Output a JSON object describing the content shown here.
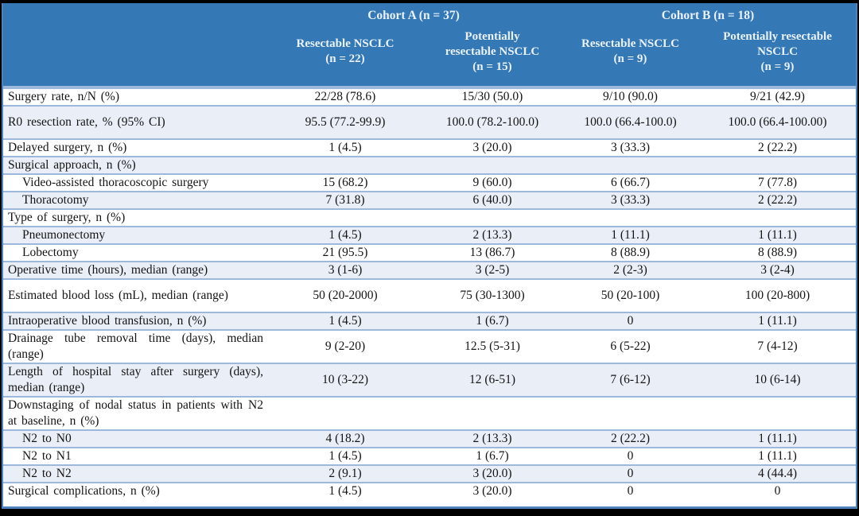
{
  "table": {
    "colors": {
      "header_bg": "#3478b6",
      "stripe_bg": "#e9eef7",
      "separator_line": "#9cb8da",
      "outer_border": "#4f81bd",
      "frame": "#000000",
      "header_text": "#eaf2fa"
    },
    "header": {
      "cohorts": [
        {
          "label": "Cohort A (n = 37)"
        },
        {
          "label": "Cohort B (n = 18)"
        }
      ],
      "columns": [
        {
          "lines": [
            "Resectable NSCLC",
            "(n = 22)"
          ]
        },
        {
          "lines": [
            "Potentially",
            "resectable NSCLC",
            "(n = 15)"
          ]
        },
        {
          "lines": [
            "Resectable NSCLC",
            "(n = 9)"
          ]
        },
        {
          "lines": [
            "Potentially resectable",
            "NSCLC",
            "(n = 9)"
          ]
        }
      ]
    },
    "rows": [
      {
        "label": "Surgery rate, n/N (%)",
        "values": [
          "22/28 (78.6)",
          "15/30 (50.0)",
          "9/10 (90.0)",
          "9/21 (42.9)"
        ]
      },
      {
        "label": "R0 resection rate, % (95% CI)",
        "values": [
          "95.5 (77.2-99.9)",
          "100.0 (78.2-100.0)",
          "100.0 (66.4-100.0)",
          "100.0 (66.4-100.00)"
        ]
      },
      {
        "label": "Delayed surgery, n (%)",
        "values": [
          "1 (4.5)",
          "3 (20.0)",
          "3 (33.3)",
          "2 (22.2)"
        ]
      },
      {
        "label": "Surgical approach, n (%)",
        "values": [
          "",
          "",
          "",
          ""
        ]
      },
      {
        "label": "Video-assisted thoracoscopic surgery",
        "values": [
          "15 (68.2)",
          "9 (60.0)",
          "6 (66.7)",
          "7 (77.8)"
        ]
      },
      {
        "label": "Thoracotomy",
        "values": [
          "7 (31.8)",
          "6 (40.0)",
          "3 (33.3)",
          "2 (22.2)"
        ]
      },
      {
        "label": "Type of surgery, n (%)",
        "values": [
          "",
          "",
          "",
          ""
        ]
      },
      {
        "label": "Pneumonectomy",
        "values": [
          "1 (4.5)",
          "2 (13.3)",
          "1 (11.1)",
          "1 (11.1)"
        ]
      },
      {
        "label": "Lobectomy",
        "values": [
          "21 (95.5)",
          "13 (86.7)",
          "8 (88.9)",
          "8 (88.9)"
        ]
      },
      {
        "label": "Operative time (hours), median (range)",
        "values": [
          "3 (1-6)",
          "3 (2-5)",
          "2 (2-3)",
          "3 (2-4)"
        ]
      },
      {
        "label": "Estimated blood loss (mL), median (range)",
        "values": [
          "50 (20-2000)",
          "75 (30-1300)",
          "50 (20-100)",
          "100 (20-800)"
        ]
      },
      {
        "label": "Intraoperative blood transfusion, n (%)",
        "values": [
          "1 (4.5)",
          "1 (6.7)",
          "0",
          "1 (11.1)"
        ]
      },
      {
        "label": "Drainage tube removal time (days), median (range)",
        "values": [
          "9 (2-20)",
          "12.5 (5-31)",
          "6 (5-22)",
          "7 (4-12)"
        ]
      },
      {
        "label": "Length of hospital stay after surgery (days), median (range)",
        "values": [
          "10 (3-22)",
          "12 (6-51)",
          "7 (6-12)",
          "10 (6-14)"
        ]
      },
      {
        "label": "Downstaging of nodal status in patients with N2 at baseline, n (%)",
        "values": [
          "",
          "",
          "",
          ""
        ]
      },
      {
        "label": "N2 to N0",
        "values": [
          "4 (18.2)",
          "2 (13.3)",
          "2 (22.2)",
          "1 (11.1)"
        ]
      },
      {
        "label": "N2 to N1",
        "values": [
          "1 (4.5)",
          "1 (6.7)",
          "0",
          "1 (11.1)"
        ]
      },
      {
        "label": "N2 to N2",
        "values": [
          "2 (9.1)",
          "3 (20.0)",
          "0",
          "4 (44.4)"
        ]
      },
      {
        "label": "Surgical complications, n (%)",
        "values": [
          "1 (4.5)",
          "3 (20.0)",
          "0",
          "0"
        ]
      }
    ]
  }
}
